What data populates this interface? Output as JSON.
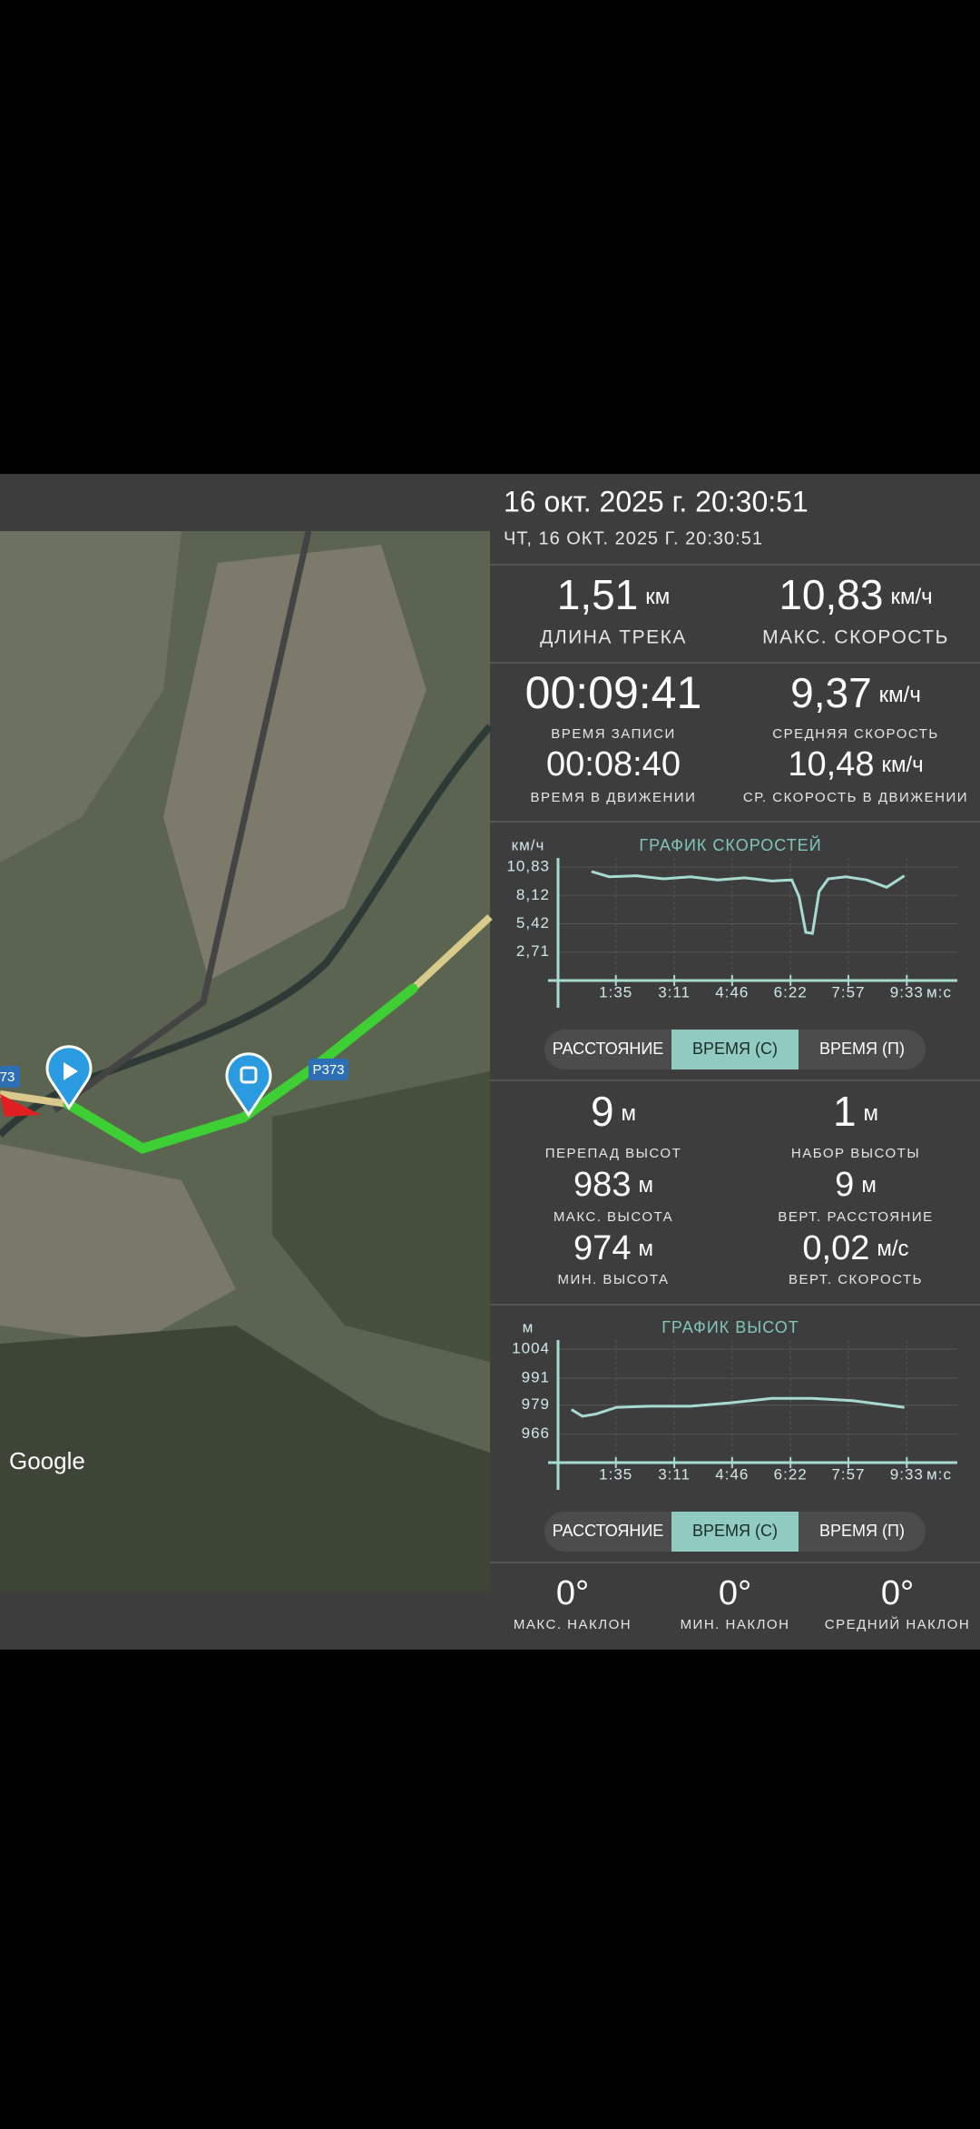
{
  "header": {
    "title": "16 окт. 2025 г. 20:30:51",
    "subtitle": "ЧТ, 16 ОКТ. 2025 Г. 20:30:51"
  },
  "track": {
    "distance": {
      "value": "1,51",
      "unit": "км",
      "label": "ДЛИНА ТРЕКА"
    },
    "max_speed": {
      "value": "10,83",
      "unit": "км/ч",
      "label": "МАКС. СКОРОСТЬ"
    }
  },
  "time": {
    "record": {
      "value": "00:09:41",
      "label": "ВРЕМЯ ЗАПИСИ"
    },
    "moving": {
      "value": "00:08:40",
      "label": "ВРЕМЯ В ДВИЖЕНИИ"
    },
    "avg_speed": {
      "value": "9,37",
      "unit": "км/ч",
      "label": "СРЕДНЯЯ СКОРОСТЬ"
    },
    "moving_speed": {
      "value": "10,48",
      "unit": "км/ч",
      "label": "СР. СКОРОСТЬ В ДВИЖЕНИИ"
    }
  },
  "speed_chart": {
    "title": "ГРАФИК СКОРОСТЕЙ",
    "y_unit": "км/ч",
    "x_unit": "м:с",
    "color": "#a6dbd2",
    "xlim": [
      0,
      656
    ],
    "ylim": [
      0,
      10.83
    ],
    "yticks": [
      {
        "value": 10.83,
        "label": "10,83"
      },
      {
        "value": 8.12,
        "label": "8,12"
      },
      {
        "value": 5.42,
        "label": "5,42"
      },
      {
        "value": 2.71,
        "label": "2,71"
      }
    ],
    "xticks": [
      {
        "value": 95,
        "label": "1:35"
      },
      {
        "value": 191,
        "label": "3:11"
      },
      {
        "value": 286,
        "label": "4:46"
      },
      {
        "value": 382,
        "label": "6:22"
      },
      {
        "value": 477,
        "label": "7:57"
      },
      {
        "value": 573,
        "label": "9:33"
      }
    ],
    "x": [
      55,
      84,
      129,
      173,
      218,
      262,
      307,
      351,
      384,
      396,
      407,
      418,
      429,
      444,
      473,
      507,
      540,
      569
    ],
    "values": [
      10.4,
      9.9,
      10.0,
      9.7,
      9.9,
      9.6,
      9.8,
      9.5,
      9.6,
      8.0,
      4.6,
      4.5,
      8.5,
      9.7,
      9.9,
      9.6,
      8.9,
      10.0
    ]
  },
  "speed_buttons": [
    "РАССТОЯНИЕ",
    "ВРЕМЯ (С)",
    "ВРЕМЯ (П)"
  ],
  "altitude": {
    "diff": {
      "value": "9",
      "unit": "м",
      "label": "ПЕРЕПАД ВЫСОТ"
    },
    "gain": {
      "value": "1",
      "unit": "м",
      "label": "НАБОР ВЫСОТЫ"
    },
    "max": {
      "value": "983",
      "unit": "м",
      "label": "МАКС. ВЫСОТА"
    },
    "vert_dist": {
      "value": "9",
      "unit": "м",
      "label": "ВЕРТ. РАССТОЯНИЕ"
    },
    "min": {
      "value": "974",
      "unit": "м",
      "label": "МИН. ВЫСОТА"
    },
    "vert_speed": {
      "value": "0,02",
      "unit": "м/с",
      "label": "ВЕРТ. СКОРОСТЬ"
    }
  },
  "alt_chart": {
    "title": "ГРАФИК ВЫСОТ",
    "y_unit": "м",
    "x_unit": "м:с",
    "color": "#a6dbd2",
    "xlim": [
      0,
      656
    ],
    "ylim": [
      953.3,
      1004
    ],
    "yticks": [
      1004,
      991,
      979,
      966
    ],
    "xticks": [
      {
        "value": 95,
        "label": "1:35"
      },
      {
        "value": 191,
        "label": "3:11"
      },
      {
        "value": 286,
        "label": "4:46"
      },
      {
        "value": 382,
        "label": "6:22"
      },
      {
        "value": 477,
        "label": "7:57"
      },
      {
        "value": 573,
        "label": "9:33"
      }
    ],
    "x": [
      22,
      40,
      62,
      96,
      151,
      218,
      284,
      351,
      418,
      484,
      569
    ],
    "values": [
      977,
      974,
      975,
      978,
      978.5,
      978.5,
      980,
      982,
      982,
      981,
      978
    ]
  },
  "alt_buttons": [
    "РАССТОЯНИЕ",
    "ВРЕМЯ (С)",
    "ВРЕМЯ (П)"
  ],
  "slope": {
    "max": {
      "value": "0°",
      "label": "МАКС. НАКЛОН"
    },
    "min": {
      "value": "0°",
      "label": "МИН. НАКЛОН"
    },
    "avg": {
      "value": "0°",
      "label": "СРЕДНИЙ НАКЛОН"
    }
  },
  "map": {
    "road_label": "Р373",
    "edge_label": "73",
    "attribution": "Google"
  }
}
